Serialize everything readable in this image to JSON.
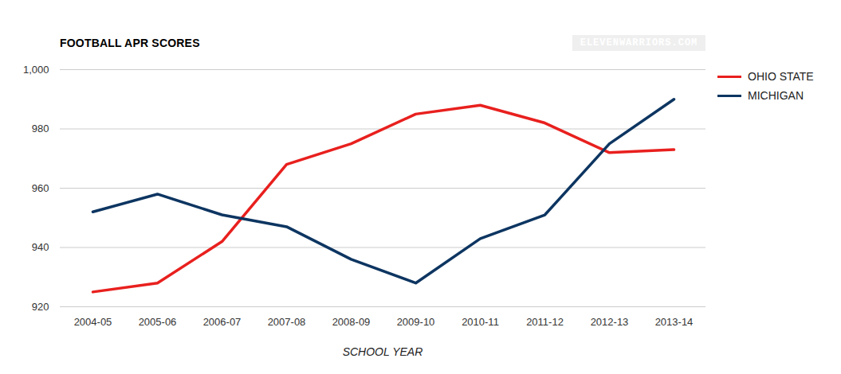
{
  "chart_data": {
    "type": "line",
    "title": "FOOTBALL APR SCORES",
    "x_label": "SCHOOL YEAR",
    "annotations": [
      "ELEVENWARRIORS.COM"
    ],
    "categories": [
      "2004-05",
      "2005-06",
      "2006-07",
      "2007-08",
      "2008-09",
      "2009-10",
      "2010-11",
      "2011-12",
      "2012-13",
      "2013-14"
    ],
    "series": [
      {
        "name": "OHIO STATE",
        "color": "#e8201e",
        "values": [
          925,
          928,
          942,
          968,
          975,
          985,
          988,
          982,
          972,
          973
        ]
      },
      {
        "name": "MICHIGAN",
        "color": "#0d3561",
        "values": [
          952,
          958,
          951,
          947,
          936,
          928,
          943,
          951,
          975,
          990
        ]
      }
    ],
    "ylim": [
      920,
      1000
    ],
    "yticks": [
      920,
      940,
      960,
      980,
      1000
    ],
    "grid": true,
    "legend": "right"
  }
}
